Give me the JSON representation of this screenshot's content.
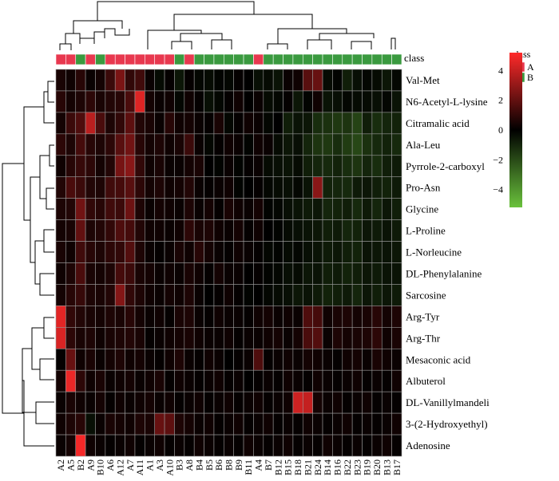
{
  "chart_data": {
    "type": "heatmap",
    "title": "",
    "class_header": "class",
    "legend": {
      "class_title": "class",
      "classes": [
        {
          "name": "A",
          "color": "#e8384f"
        },
        {
          "name": "B",
          "color": "#3a9a3f"
        }
      ],
      "color_scale": {
        "min": -5.2,
        "max": 5.2,
        "low_color": "#6ac23c",
        "mid_color": "#000000",
        "high_color": "#ff2a2a",
        "ticks": [
          4,
          2,
          0,
          -2,
          -4
        ],
        "tick_labels": [
          "4",
          "2",
          "0",
          "−2",
          "−4"
        ]
      }
    },
    "columns": [
      "A2",
      "A5",
      "B2",
      "A9",
      "B10",
      "A6",
      "A12",
      "A7",
      "A11",
      "A1",
      "A3",
      "A10",
      "B3",
      "A8",
      "B4",
      "B5",
      "B6",
      "B8",
      "B9",
      "B11",
      "A4",
      "B7",
      "B12",
      "B15",
      "B18",
      "B21",
      "B24",
      "B14",
      "B16",
      "B22",
      "B23",
      "B19",
      "B20",
      "B13",
      "B17"
    ],
    "column_classes": [
      "A",
      "A",
      "B",
      "A",
      "B",
      "A",
      "A",
      "A",
      "A",
      "A",
      "A",
      "A",
      "B",
      "A",
      "B",
      "B",
      "B",
      "B",
      "B",
      "B",
      "A",
      "B",
      "B",
      "B",
      "B",
      "B",
      "B",
      "B",
      "B",
      "B",
      "B",
      "B",
      "B",
      "B",
      "B"
    ],
    "rows": [
      "Val-Met",
      "N6-Acetyl-L-lysine",
      "Citramalic acid",
      "Ala-Leu",
      "Pyrrole-2-carboxyl",
      "Pro-Asn",
      "Glycine",
      "L-Proline",
      "L-Norleucine",
      "DL-Phenylalanine",
      "Sarcosine",
      "Arg-Tyr",
      "Arg-Thr",
      "Mesaconic acid",
      "Albuterol",
      "DL-Vanillylmandeli",
      "3-(2-Hydroxyethyl)",
      "Adenosine"
    ],
    "values": [
      [
        0.5,
        0.3,
        0.8,
        0.2,
        0.4,
        1.2,
        2.5,
        1.0,
        1.3,
        0.2,
        -0.3,
        0.1,
        -0.6,
        0.1,
        -0.2,
        -0.3,
        -0.1,
        -0.2,
        0.1,
        0.0,
        -0.4,
        -0.3,
        -0.5,
        0.2,
        0.3,
        1.8,
        2.1,
        -0.3,
        -0.1,
        -0.8,
        -0.4,
        -0.2,
        -0.3,
        -0.6,
        -0.2
      ],
      [
        0.8,
        0.4,
        0.6,
        0.9,
        0.5,
        0.7,
        0.8,
        1.5,
        4.5,
        0.4,
        0.2,
        0.3,
        -0.2,
        0.3,
        0.1,
        -0.4,
        -0.2,
        0.1,
        0.3,
        0.0,
        0.2,
        -0.3,
        -0.2,
        0.1,
        -0.6,
        -0.1,
        0.3,
        -0.5,
        -0.4,
        -0.2,
        -0.3,
        -0.3,
        -0.4,
        -0.2,
        -0.5
      ],
      [
        0.4,
        1.2,
        1.6,
        3.8,
        1.5,
        0.6,
        1.0,
        1.9,
        0.7,
        0.5,
        0.2,
        0.8,
        0.3,
        0.4,
        0.2,
        0.1,
        0.5,
        -0.2,
        0.1,
        0.3,
        0.2,
        -0.2,
        0.0,
        -0.8,
        -0.5,
        -0.6,
        -1.2,
        -1.3,
        -1.5,
        -1.4,
        -1.8,
        -0.8,
        -1.2,
        -1.0,
        -0.9
      ],
      [
        0.9,
        0.6,
        1.4,
        0.8,
        0.6,
        0.9,
        1.8,
        2.3,
        0.8,
        0.4,
        0.6,
        0.3,
        0.5,
        1.2,
        0.2,
        -0.2,
        0.1,
        0.3,
        0.2,
        -0.1,
        0.3,
        0.2,
        -0.3,
        -0.6,
        -0.4,
        -1.0,
        -1.4,
        -1.5,
        -1.2,
        -1.6,
        -1.9,
        -1.3,
        -1.1,
        -0.9,
        -1.1
      ],
      [
        0.3,
        0.8,
        1.1,
        0.9,
        0.4,
        0.7,
        2.4,
        2.8,
        1.0,
        0.3,
        0.5,
        0.2,
        0.2,
        0.4,
        0.5,
        0.0,
        -0.1,
        0.2,
        -0.1,
        0.1,
        0.2,
        -0.3,
        -0.4,
        -0.5,
        -0.3,
        -0.8,
        -1.0,
        -1.1,
        -0.9,
        -1.2,
        -1.4,
        -1.0,
        -1.2,
        -0.8,
        -0.7
      ],
      [
        0.7,
        1.5,
        1.2,
        0.7,
        0.6,
        1.3,
        1.4,
        1.8,
        0.9,
        0.4,
        0.6,
        0.3,
        0.4,
        0.7,
        0.2,
        0.1,
        0.2,
        0.3,
        -0.1,
        0.0,
        0.1,
        -0.2,
        -0.3,
        -0.4,
        -0.2,
        -0.5,
        2.8,
        -0.9,
        -1.0,
        -1.1,
        -0.7,
        -0.6,
        -0.8,
        -0.9,
        -0.7
      ],
      [
        0.6,
        0.7,
        2.3,
        1.0,
        0.8,
        1.3,
        1.2,
        2.2,
        0.6,
        0.2,
        0.4,
        0.3,
        0.2,
        0.6,
        0.2,
        0.4,
        0.1,
        0.5,
        0.3,
        0.2,
        0.4,
        -0.1,
        -0.2,
        -0.4,
        -0.5,
        -0.7,
        -0.6,
        -1.0,
        -0.9,
        -0.8,
        -1.1,
        -0.7,
        -1.0,
        -0.6,
        -0.8
      ],
      [
        0.4,
        0.5,
        2.0,
        0.6,
        0.7,
        1.0,
        1.6,
        1.4,
        0.7,
        0.3,
        0.3,
        0.2,
        0.3,
        0.9,
        0.5,
        0.6,
        0.3,
        0.2,
        0.4,
        0.1,
        0.3,
        0.0,
        -0.1,
        -0.3,
        -0.4,
        -0.5,
        -0.6,
        -0.8,
        -0.7,
        -1.0,
        -0.9,
        -0.6,
        -0.7,
        -0.5,
        -0.7
      ],
      [
        0.5,
        0.3,
        1.3,
        0.8,
        0.6,
        0.9,
        1.0,
        1.7,
        0.6,
        0.2,
        0.1,
        0.2,
        0.5,
        0.3,
        0.8,
        0.4,
        0.2,
        0.1,
        0.3,
        0.2,
        0.1,
        -0.2,
        -0.1,
        -0.3,
        -0.2,
        -0.4,
        -0.5,
        -0.7,
        -0.6,
        -0.8,
        -0.9,
        -0.5,
        -0.6,
        -0.5,
        -0.6
      ],
      [
        0.3,
        0.6,
        1.5,
        0.5,
        0.4,
        0.6,
        1.4,
        1.2,
        0.5,
        0.4,
        0.2,
        0.3,
        0.2,
        0.5,
        0.3,
        0.1,
        0.4,
        0.2,
        0.2,
        0.0,
        0.1,
        -0.1,
        -0.2,
        -0.4,
        -0.3,
        -0.6,
        -0.5,
        -0.8,
        -0.7,
        -0.9,
        -0.8,
        -0.6,
        -0.7,
        -0.5,
        -0.5
      ],
      [
        0.4,
        0.8,
        1.1,
        0.6,
        0.5,
        0.7,
        2.7,
        1.0,
        0.6,
        0.3,
        0.2,
        0.4,
        0.3,
        0.6,
        0.2,
        0.0,
        0.1,
        0.3,
        0.1,
        -0.1,
        0.0,
        -0.2,
        -0.3,
        -0.4,
        -0.6,
        -0.5,
        -0.7,
        -0.9,
        -0.8,
        -0.7,
        -1.0,
        -0.6,
        -0.8,
        -0.6,
        -0.7
      ],
      [
        4.6,
        1.0,
        0.7,
        0.5,
        0.4,
        0.6,
        0.5,
        0.8,
        0.4,
        0.2,
        0.3,
        0.1,
        0.5,
        0.6,
        0.2,
        0.1,
        0.3,
        0.2,
        0.2,
        0.1,
        0.3,
        0.4,
        0.2,
        0.3,
        0.2,
        1.6,
        1.4,
        0.3,
        0.5,
        0.6,
        0.4,
        0.5,
        0.8,
        0.4,
        0.6
      ],
      [
        4.4,
        0.9,
        0.5,
        0.6,
        0.3,
        0.5,
        0.6,
        0.7,
        0.5,
        0.1,
        0.2,
        0.3,
        0.4,
        0.5,
        0.3,
        0.2,
        0.2,
        0.3,
        0.1,
        0.2,
        0.2,
        0.3,
        0.4,
        0.2,
        0.4,
        1.5,
        1.7,
        0.2,
        0.6,
        0.4,
        0.5,
        0.6,
        0.9,
        0.3,
        0.5
      ],
      [
        0.1,
        2.1,
        0.3,
        0.5,
        0.2,
        0.4,
        0.6,
        0.3,
        0.4,
        0.2,
        0.1,
        0.3,
        0.6,
        0.2,
        0.1,
        0.3,
        0.2,
        0.0,
        0.1,
        0.2,
        1.6,
        0.1,
        0.2,
        0.3,
        0.2,
        0.4,
        0.3,
        0.2,
        0.1,
        0.3,
        0.4,
        0.2,
        0.5,
        0.3,
        0.2
      ],
      [
        0.4,
        4.8,
        0.9,
        0.3,
        0.5,
        0.2,
        0.3,
        0.4,
        0.2,
        0.3,
        0.5,
        0.1,
        0.3,
        0.2,
        0.1,
        0.2,
        0.3,
        0.1,
        0.2,
        0.0,
        0.1,
        0.2,
        0.1,
        0.3,
        0.2,
        0.1,
        0.3,
        0.2,
        0.1,
        0.2,
        0.3,
        0.1,
        0.2,
        0.1,
        0.3
      ],
      [
        0.2,
        0.5,
        0.3,
        0.2,
        0.4,
        0.1,
        0.3,
        0.2,
        0.3,
        0.4,
        0.2,
        0.3,
        0.1,
        0.2,
        0.3,
        0.1,
        0.2,
        0.3,
        0.1,
        0.2,
        0.3,
        0.1,
        0.2,
        0.3,
        4.2,
        4.0,
        0.4,
        0.2,
        0.3,
        0.1,
        0.2,
        0.3,
        0.1,
        0.2,
        0.1
      ],
      [
        0.3,
        0.6,
        0.8,
        -0.4,
        0.2,
        0.5,
        0.4,
        0.3,
        0.6,
        0.5,
        2.1,
        1.9,
        0.6,
        0.4,
        0.2,
        0.3,
        0.1,
        0.2,
        0.3,
        0.1,
        0.2,
        0.3,
        0.1,
        0.2,
        0.1,
        0.3,
        0.2,
        0.1,
        0.2,
        0.3,
        0.1,
        0.2,
        0.1,
        0.2,
        0.3
      ],
      [
        0.2,
        0.4,
        5.0,
        0.3,
        0.2,
        0.1,
        0.2,
        0.3,
        0.1,
        0.2,
        0.3,
        0.1,
        0.2,
        0.1,
        0.3,
        0.2,
        0.1,
        0.2,
        0.1,
        0.3,
        0.2,
        0.1,
        0.2,
        0.3,
        0.1,
        0.2,
        0.1,
        0.3,
        0.2,
        0.1,
        0.2,
        0.1,
        0.2,
        0.3,
        0.1
      ]
    ]
  }
}
